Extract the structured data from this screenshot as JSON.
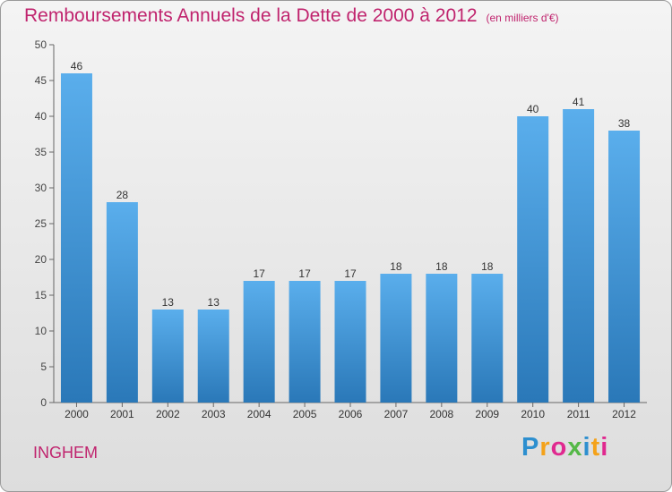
{
  "title": "Remboursements Annuels de la Dette de 2000 à 2012",
  "unit": "(en milliers d'€)",
  "city": "INGHEM",
  "logo": "Proxiti",
  "colors": {
    "bar": "#3a8fd2",
    "title": "#c0246e"
  },
  "chart_data": {
    "type": "bar",
    "title": "Remboursements Annuels de la Dette de 2000 à 2012",
    "categories": [
      "2000",
      "2001",
      "2002",
      "2003",
      "2004",
      "2005",
      "2006",
      "2007",
      "2008",
      "2009",
      "2010",
      "2011",
      "2012"
    ],
    "values": [
      46,
      28,
      13,
      13,
      17,
      17,
      17,
      18,
      18,
      18,
      40,
      41,
      38
    ],
    "yticks": [
      0,
      5,
      10,
      15,
      20,
      25,
      30,
      35,
      40,
      45,
      50
    ],
    "ylim": [
      0,
      50
    ],
    "xlabel": "",
    "ylabel": "",
    "grid": false,
    "legend": "none"
  }
}
